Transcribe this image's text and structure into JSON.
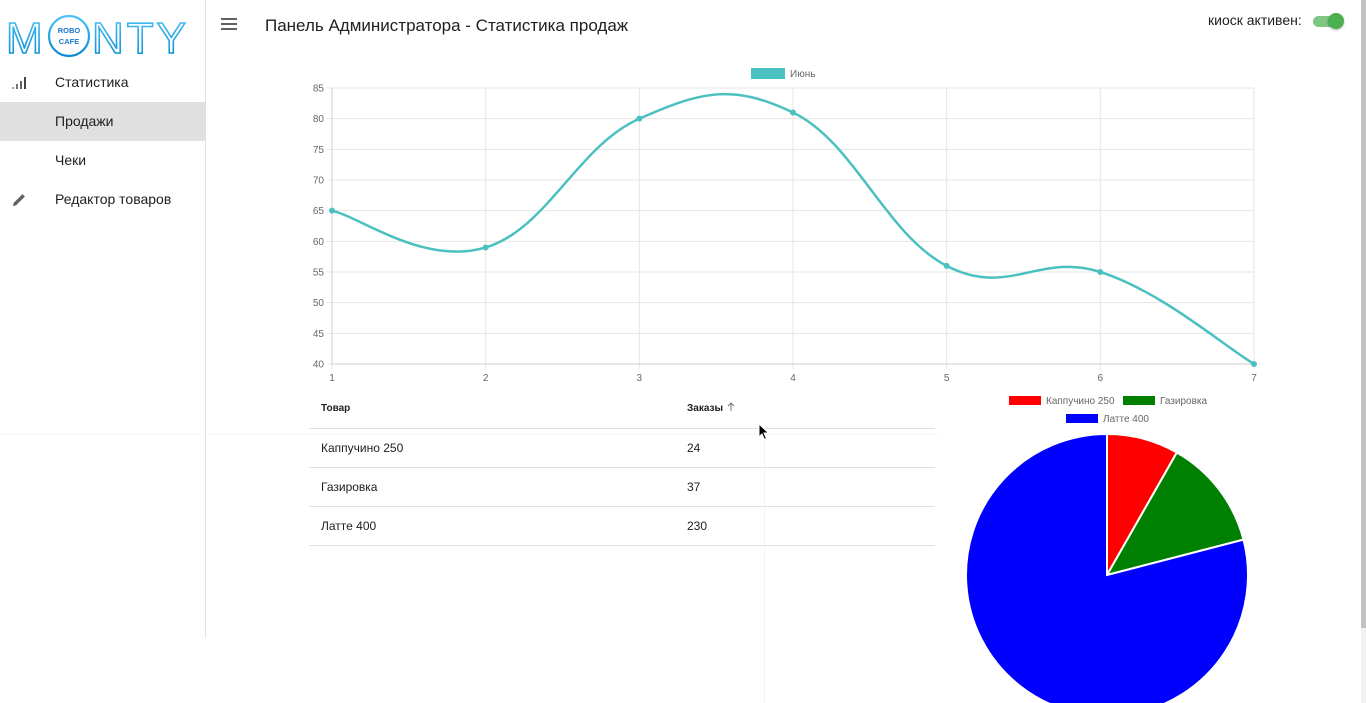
{
  "header": {
    "title": "Панель Администратора - Статистика продаж",
    "kiosk_label": "киоск активен:",
    "kiosk_active": true
  },
  "logo": {
    "left": "M",
    "right": "NTY",
    "ring_top": "ROBO",
    "ring_bottom": "CAFE"
  },
  "sidebar": {
    "items": [
      {
        "label": "Статистика",
        "icon": "bar-chart-icon",
        "active": false
      },
      {
        "label": "Продажи",
        "icon": "",
        "active": true
      },
      {
        "label": "Чеки",
        "icon": "",
        "active": false
      },
      {
        "label": "Редактор товаров",
        "icon": "pencil-icon",
        "active": false
      }
    ]
  },
  "line_chart": {
    "type": "line",
    "legend": "Июнь",
    "color": "#4bc0c0",
    "x": [
      1,
      2,
      3,
      4,
      5,
      6,
      7
    ],
    "values": [
      65,
      59,
      80,
      81,
      56,
      55,
      40
    ],
    "ylim": [
      40,
      85
    ],
    "yticks": [
      40,
      45,
      50,
      55,
      60,
      65,
      70,
      75,
      80,
      85
    ]
  },
  "table": {
    "headers": [
      "Товар",
      "Заказы"
    ],
    "rows": [
      [
        "Каппучино 250",
        "24"
      ],
      [
        "Газировка",
        "37"
      ],
      [
        "Латте 400",
        "230"
      ]
    ]
  },
  "pie_chart": {
    "type": "pie",
    "labels": [
      "Каппучино 250",
      "Газировка",
      "Латте 400"
    ],
    "values": [
      24,
      37,
      230
    ],
    "colors": [
      "#ff0000",
      "#008000",
      "#0000ff"
    ]
  },
  "chart_data": [
    {
      "type": "line",
      "x": [
        1,
        2,
        3,
        4,
        5,
        6,
        7
      ],
      "series": [
        {
          "name": "Июнь",
          "values": [
            65,
            59,
            80,
            81,
            56,
            55,
            40
          ]
        }
      ],
      "ylim": [
        40,
        85
      ],
      "grid": true,
      "legend": "top-center"
    },
    {
      "type": "pie",
      "categories": [
        "Каппучино 250",
        "Газировка",
        "Латте 400"
      ],
      "values": [
        24,
        37,
        230
      ],
      "legend": "top"
    }
  ]
}
